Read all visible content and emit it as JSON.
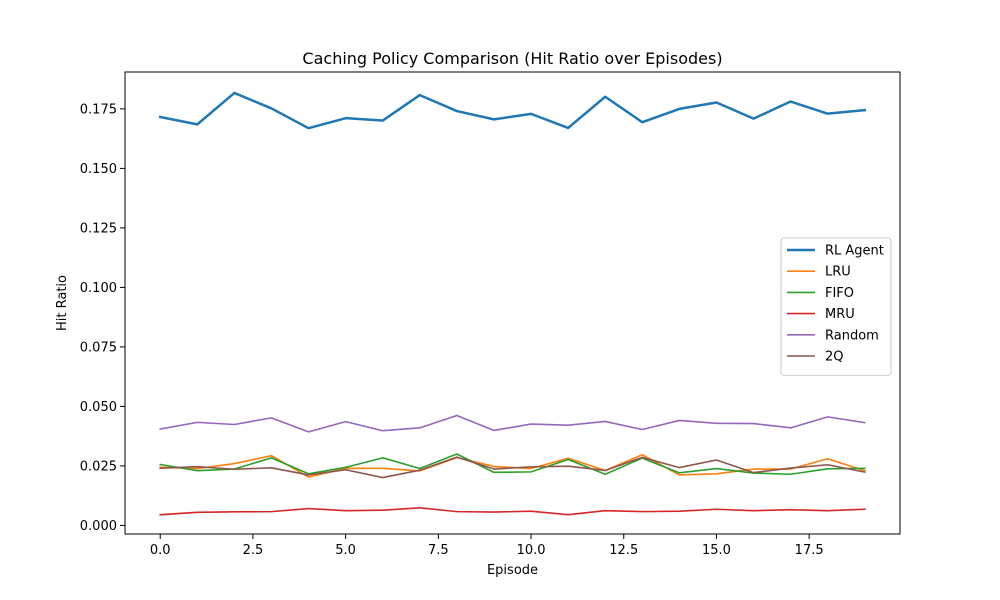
{
  "chart_data": {
    "type": "line",
    "title": "Caching Policy Comparison (Hit Ratio over Episodes)",
    "xlabel": "Episode",
    "ylabel": "Hit Ratio",
    "xlim": [
      -0.95,
      19.95
    ],
    "ylim": [
      -0.0036,
      0.1905
    ],
    "xticks": [
      0.0,
      2.5,
      5.0,
      7.5,
      10.0,
      12.5,
      15.0,
      17.5
    ],
    "xtick_labels": [
      "0.0",
      "2.5",
      "5.0",
      "7.5",
      "10.0",
      "12.5",
      "15.0",
      "17.5"
    ],
    "yticks": [
      0.0,
      0.025,
      0.05,
      0.075,
      0.1,
      0.125,
      0.15,
      0.175
    ],
    "ytick_labels": [
      "0.000",
      "0.025",
      "0.050",
      "0.075",
      "0.100",
      "0.125",
      "0.150",
      "0.175"
    ],
    "grid": false,
    "legend_position": "center-right",
    "x": [
      0,
      1,
      2,
      3,
      4,
      5,
      6,
      7,
      8,
      9,
      10,
      11,
      12,
      13,
      14,
      15,
      16,
      17,
      18,
      19
    ],
    "series": [
      {
        "name": "RL Agent",
        "color": "#1f77b4",
        "width": 2.5,
        "values": [
          0.1716,
          0.1685,
          0.1817,
          0.1752,
          0.1669,
          0.1711,
          0.1701,
          0.1808,
          0.1741,
          0.1706,
          0.1729,
          0.167,
          0.1801,
          0.1694,
          0.175,
          0.1777,
          0.1709,
          0.1781,
          0.173,
          0.1745
        ]
      },
      {
        "name": "LRU",
        "color": "#ff7f0e",
        "width": 1.6,
        "values": [
          0.0245,
          0.0239,
          0.026,
          0.0293,
          0.0203,
          0.024,
          0.024,
          0.0229,
          0.0285,
          0.0248,
          0.0239,
          0.0282,
          0.0231,
          0.0297,
          0.0212,
          0.0217,
          0.0237,
          0.0237,
          0.028,
          0.023
        ]
      },
      {
        "name": "FIFO",
        "color": "#2ca02c",
        "width": 1.6,
        "values": [
          0.0256,
          0.023,
          0.0237,
          0.0284,
          0.0217,
          0.0244,
          0.0284,
          0.0239,
          0.03,
          0.0223,
          0.0225,
          0.0277,
          0.0215,
          0.0283,
          0.0221,
          0.0239,
          0.022,
          0.0215,
          0.0238,
          0.024
        ]
      },
      {
        "name": "MRU",
        "color": "#d62728",
        "width": 1.6,
        "values": [
          0.0045,
          0.0055,
          0.0057,
          0.0058,
          0.0071,
          0.0062,
          0.0064,
          0.0074,
          0.0058,
          0.0056,
          0.006,
          0.0045,
          0.0062,
          0.0058,
          0.006,
          0.0068,
          0.0062,
          0.0066,
          0.0062,
          0.0068
        ]
      },
      {
        "name": "Random",
        "color": "#9467bd",
        "width": 1.6,
        "values": [
          0.0405,
          0.0433,
          0.0424,
          0.0452,
          0.0393,
          0.0436,
          0.0398,
          0.041,
          0.0462,
          0.0399,
          0.0426,
          0.0421,
          0.0437,
          0.0403,
          0.0441,
          0.0429,
          0.0428,
          0.041,
          0.0456,
          0.0432
        ]
      },
      {
        "name": "2Q",
        "color": "#8c564b",
        "width": 1.6,
        "values": [
          0.024,
          0.0247,
          0.0236,
          0.0242,
          0.0212,
          0.0234,
          0.0201,
          0.0232,
          0.0287,
          0.0237,
          0.0246,
          0.0249,
          0.0231,
          0.0286,
          0.0243,
          0.0275,
          0.0222,
          0.0241,
          0.0255,
          0.0224
        ]
      }
    ]
  }
}
